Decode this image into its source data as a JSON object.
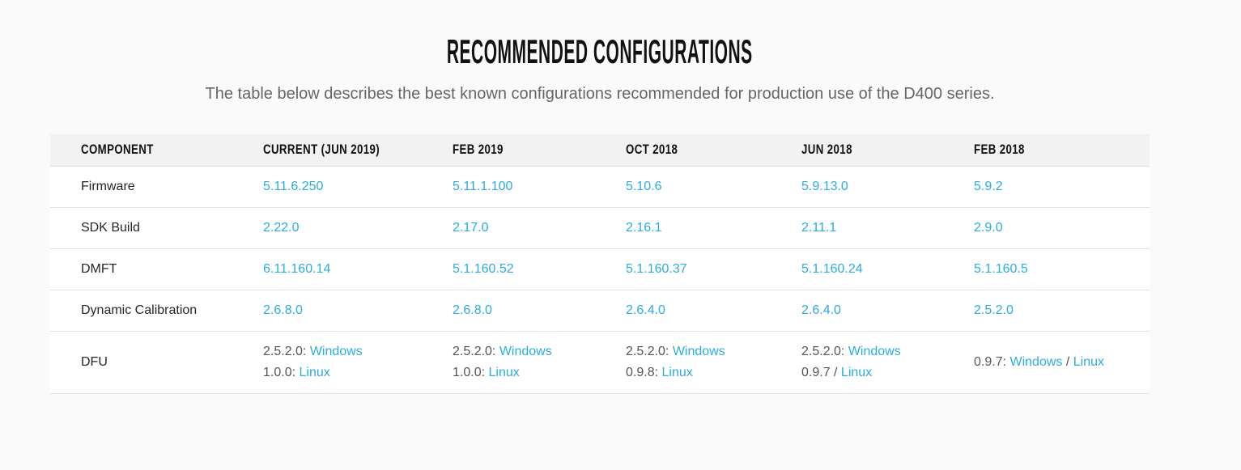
{
  "header": {
    "title": "RECOMMENDED CONFIGURATIONS",
    "subtitle": "The table below describes the best known configurations recommended for production use of the D400 series."
  },
  "table": {
    "columns": [
      {
        "label": "COMPONENT"
      },
      {
        "label": "CURRENT (JUN 2019)"
      },
      {
        "label": "FEB 2019"
      },
      {
        "label": "OCT 2018"
      },
      {
        "label": "JUN 2018"
      },
      {
        "label": "FEB 2018"
      }
    ],
    "rows": [
      {
        "component": "Firmware",
        "cells": [
          {
            "lines": [
              [
                {
                  "text": "5.11.6.250",
                  "link": true
                }
              ]
            ]
          },
          {
            "lines": [
              [
                {
                  "text": "5.11.1.100",
                  "link": true
                }
              ]
            ]
          },
          {
            "lines": [
              [
                {
                  "text": "5.10.6",
                  "link": true
                }
              ]
            ]
          },
          {
            "lines": [
              [
                {
                  "text": "5.9.13.0",
                  "link": true
                }
              ]
            ]
          },
          {
            "lines": [
              [
                {
                  "text": "5.9.2",
                  "link": true
                }
              ]
            ]
          }
        ]
      },
      {
        "component": "SDK Build",
        "cells": [
          {
            "lines": [
              [
                {
                  "text": "2.22.0",
                  "link": true
                }
              ]
            ]
          },
          {
            "lines": [
              [
                {
                  "text": "2.17.0",
                  "link": true
                }
              ]
            ]
          },
          {
            "lines": [
              [
                {
                  "text": "2.16.1",
                  "link": true
                }
              ]
            ]
          },
          {
            "lines": [
              [
                {
                  "text": "2.11.1",
                  "link": true
                }
              ]
            ]
          },
          {
            "lines": [
              [
                {
                  "text": "2.9.0",
                  "link": true
                }
              ]
            ]
          }
        ]
      },
      {
        "component": "DMFT",
        "cells": [
          {
            "lines": [
              [
                {
                  "text": "6.11.160.14",
                  "link": true
                }
              ]
            ]
          },
          {
            "lines": [
              [
                {
                  "text": "5.1.160.52",
                  "link": true
                }
              ]
            ]
          },
          {
            "lines": [
              [
                {
                  "text": "5.1.160.37",
                  "link": true
                }
              ]
            ]
          },
          {
            "lines": [
              [
                {
                  "text": "5.1.160.24",
                  "link": true
                }
              ]
            ]
          },
          {
            "lines": [
              [
                {
                  "text": "5.1.160.5",
                  "link": true
                }
              ]
            ]
          }
        ]
      },
      {
        "component": "Dynamic Calibration",
        "cells": [
          {
            "lines": [
              [
                {
                  "text": "2.6.8.0",
                  "link": true
                }
              ]
            ]
          },
          {
            "lines": [
              [
                {
                  "text": "2.6.8.0",
                  "link": true
                }
              ]
            ]
          },
          {
            "lines": [
              [
                {
                  "text": "2.6.4.0",
                  "link": true
                }
              ]
            ]
          },
          {
            "lines": [
              [
                {
                  "text": "2.6.4.0",
                  "link": true
                }
              ]
            ]
          },
          {
            "lines": [
              [
                {
                  "text": "2.5.2.0",
                  "link": true
                }
              ]
            ]
          }
        ]
      },
      {
        "component": "DFU",
        "cells": [
          {
            "lines": [
              [
                {
                  "text": "2.5.2.0: ",
                  "link": false
                },
                {
                  "text": "Windows",
                  "link": true
                }
              ],
              [
                {
                  "text": "1.0.0: ",
                  "link": false
                },
                {
                  "text": "Linux",
                  "link": true
                }
              ]
            ]
          },
          {
            "lines": [
              [
                {
                  "text": "2.5.2.0: ",
                  "link": false
                },
                {
                  "text": "Windows",
                  "link": true
                }
              ],
              [
                {
                  "text": "1.0.0: ",
                  "link": false
                },
                {
                  "text": "Linux",
                  "link": true
                }
              ]
            ]
          },
          {
            "lines": [
              [
                {
                  "text": "2.5.2.0: ",
                  "link": false
                },
                {
                  "text": "Windows",
                  "link": true
                }
              ],
              [
                {
                  "text": "0.9.8: ",
                  "link": false
                },
                {
                  "text": "Linux",
                  "link": true
                }
              ]
            ]
          },
          {
            "lines": [
              [
                {
                  "text": "2.5.2.0: ",
                  "link": false
                },
                {
                  "text": "Windows",
                  "link": true
                }
              ],
              [
                {
                  "text": "0.9.7 / ",
                  "link": false
                },
                {
                  "text": "Linux",
                  "link": true
                }
              ]
            ]
          },
          {
            "lines": [
              [
                {
                  "text": "0.9.7: ",
                  "link": false
                },
                {
                  "text": "Windows",
                  "link": true
                },
                {
                  "text": " / ",
                  "link": false
                },
                {
                  "text": "Linux",
                  "link": true
                }
              ]
            ]
          }
        ]
      }
    ]
  },
  "colors": {
    "link": "#2bace2",
    "page_background": "#fafafa",
    "table_background": "#ffffff",
    "header_row_background": "#f2f2f2",
    "divider": "#e2e2e2",
    "heading_text": "#111111",
    "body_text": "#262626",
    "muted_text": "#666666",
    "prefix_text": "#555555"
  }
}
